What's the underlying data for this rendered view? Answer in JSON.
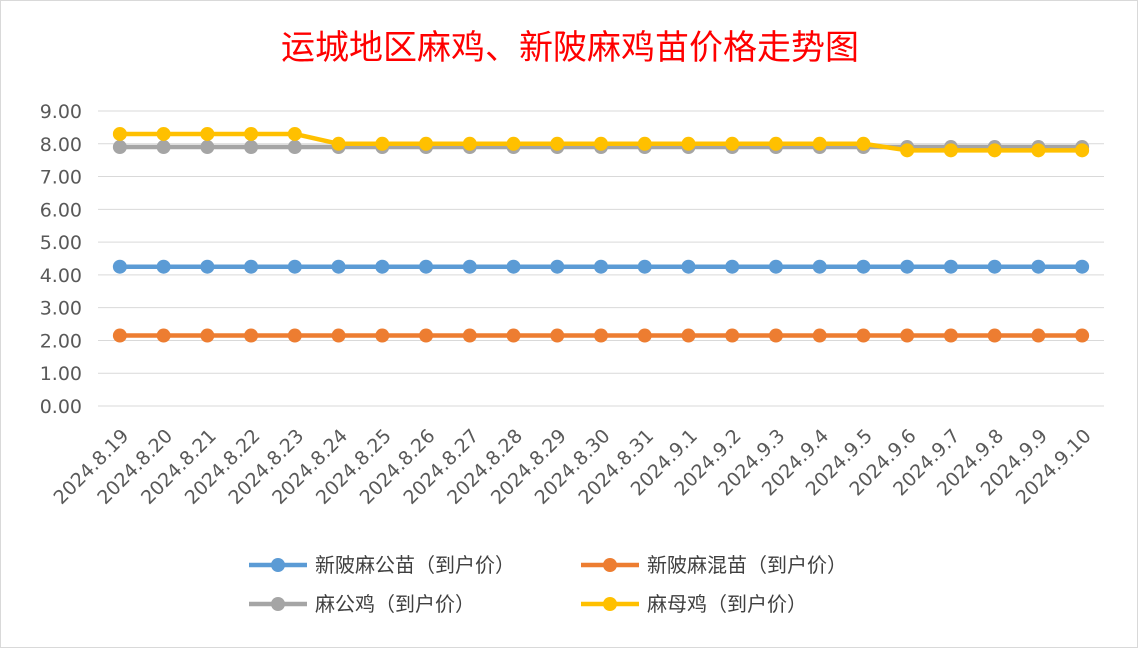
{
  "chart_data": {
    "type": "line",
    "title": "运城地区麻鸡、新陂麻鸡苗价格走势图",
    "xlabel": "",
    "ylabel": "",
    "ylim": [
      0,
      9
    ],
    "y_ticks": [
      "0.00",
      "1.00",
      "2.00",
      "3.00",
      "4.00",
      "5.00",
      "6.00",
      "7.00",
      "8.00",
      "9.00"
    ],
    "grid": "horizontal",
    "legend_position": "bottom",
    "categories": [
      "2024.8.19",
      "2024.8.20",
      "2024.8.21",
      "2024.8.22",
      "2024.8.23",
      "2024.8.24",
      "2024.8.25",
      "2024.8.26",
      "2024.8.27",
      "2024.8.28",
      "2024.8.29",
      "2024.8.30",
      "2024.8.31",
      "2024.9.1",
      "2024.9.2",
      "2024.9.3",
      "2024.9.4",
      "2024.9.5",
      "2024.9.6",
      "2024.9.7",
      "2024.9.8",
      "2024.9.9",
      "2024.9.10"
    ],
    "series": [
      {
        "name": "新陂麻公苗（到户价）",
        "color": "#5b9bd5",
        "values": [
          4.25,
          4.25,
          4.25,
          4.25,
          4.25,
          4.25,
          4.25,
          4.25,
          4.25,
          4.25,
          4.25,
          4.25,
          4.25,
          4.25,
          4.25,
          4.25,
          4.25,
          4.25,
          4.25,
          4.25,
          4.25,
          4.25,
          4.25
        ]
      },
      {
        "name": "新陂麻混苗（到户价）",
        "color": "#ed7d31",
        "values": [
          2.15,
          2.15,
          2.15,
          2.15,
          2.15,
          2.15,
          2.15,
          2.15,
          2.15,
          2.15,
          2.15,
          2.15,
          2.15,
          2.15,
          2.15,
          2.15,
          2.15,
          2.15,
          2.15,
          2.15,
          2.15,
          2.15,
          2.15
        ]
      },
      {
        "name": "麻公鸡（到户价）",
        "color": "#a5a5a5",
        "values": [
          7.9,
          7.9,
          7.9,
          7.9,
          7.9,
          7.9,
          7.9,
          7.9,
          7.9,
          7.9,
          7.9,
          7.9,
          7.9,
          7.9,
          7.9,
          7.9,
          7.9,
          7.9,
          7.9,
          7.9,
          7.9,
          7.9,
          7.9
        ]
      },
      {
        "name": "麻母鸡（到户价）",
        "color": "#ffc000",
        "values": [
          8.3,
          8.3,
          8.3,
          8.3,
          8.3,
          8.0,
          8.0,
          8.0,
          8.0,
          8.0,
          8.0,
          8.0,
          8.0,
          8.0,
          8.0,
          8.0,
          8.0,
          8.0,
          7.8,
          7.8,
          7.8,
          7.8,
          7.8
        ]
      }
    ]
  }
}
